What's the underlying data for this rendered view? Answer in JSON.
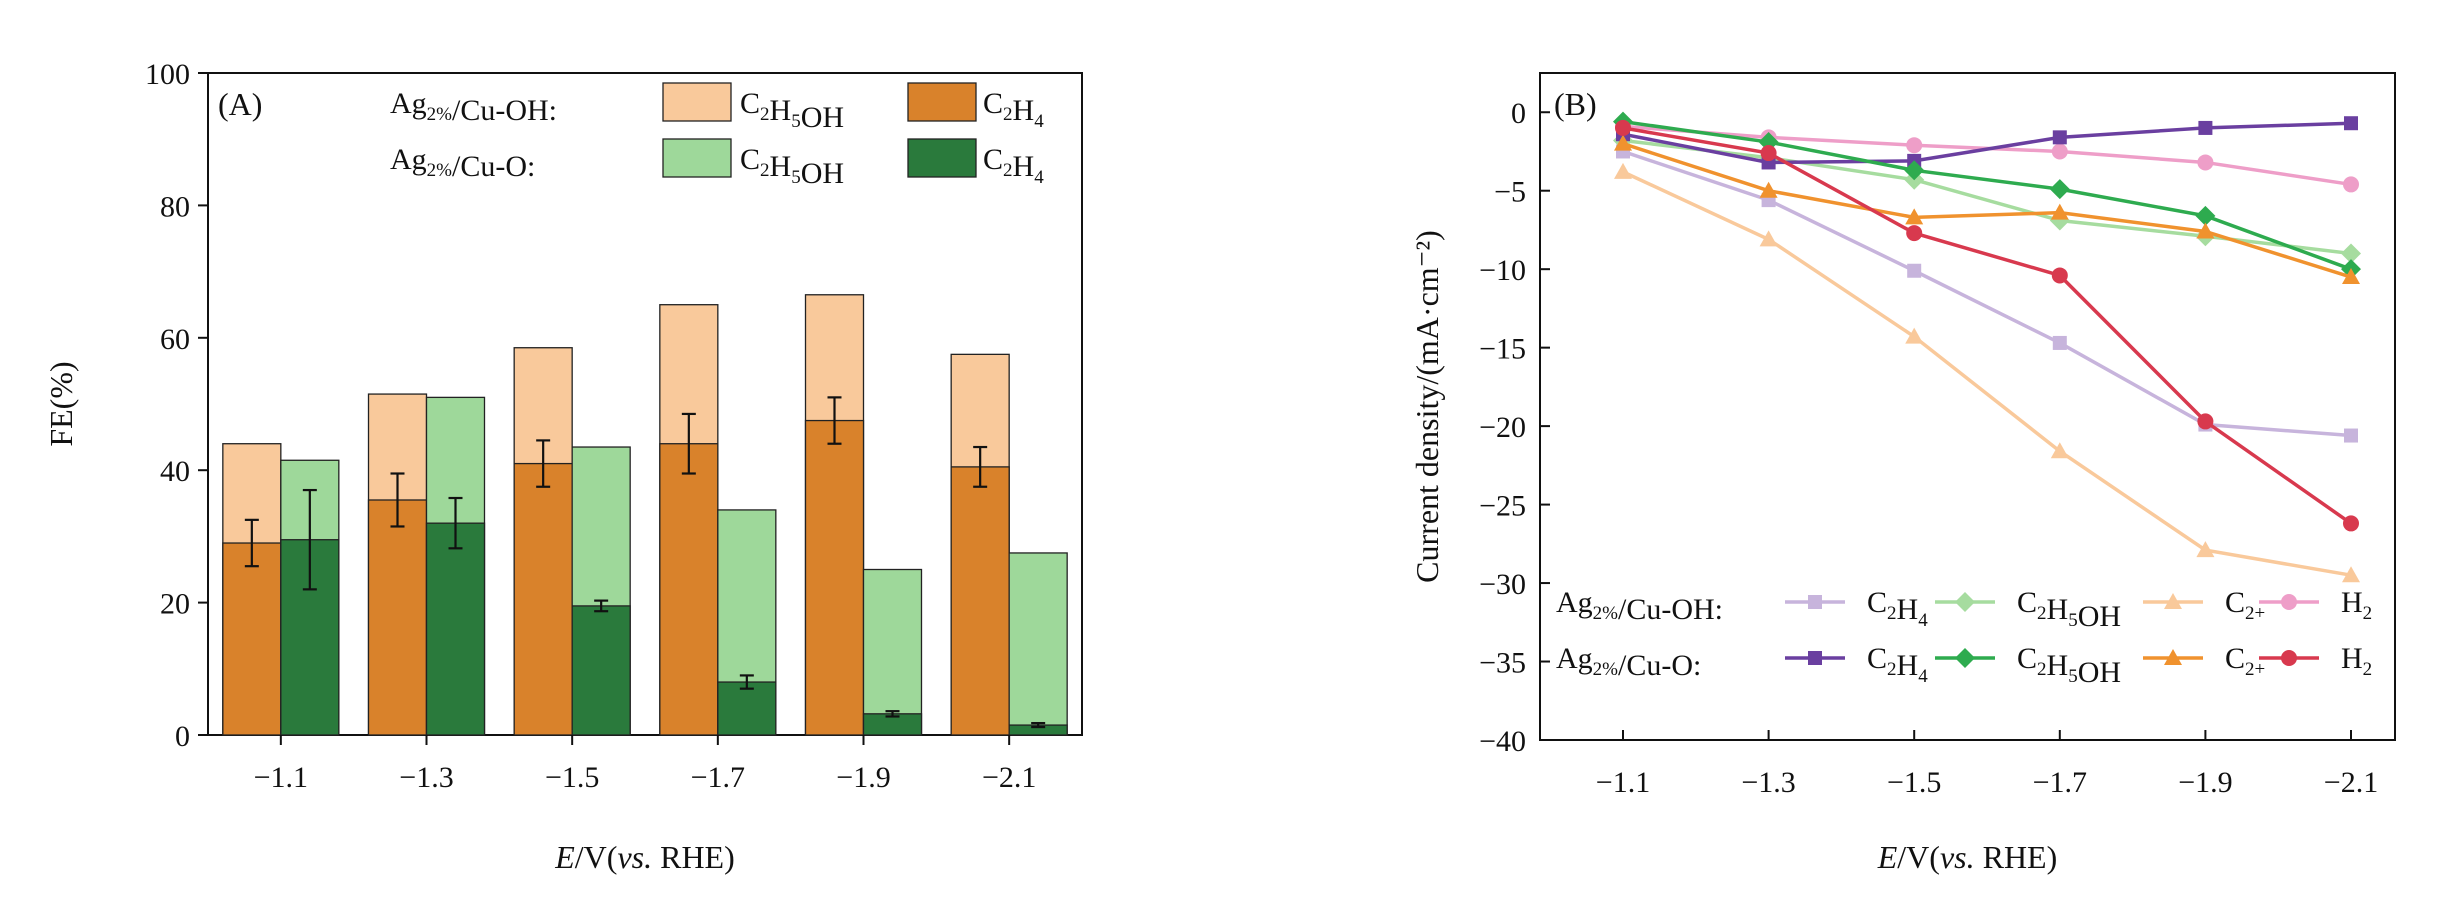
{
  "chart_data": [
    {
      "type": "bar",
      "panel_label": "(A)",
      "ylabel": "FE(%)",
      "xlabel": {
        "italic": "E",
        "mid": "/V(",
        "italic2": "vs.",
        "end": " RHE)"
      },
      "ylim": [
        0,
        100
      ],
      "yticks": [
        "0",
        "20",
        "40",
        "60",
        "80",
        "100"
      ],
      "categories": [
        "−1.1",
        "−1.3",
        "−1.5",
        "−1.7",
        "−1.9",
        "−2.1"
      ],
      "series": [
        {
          "group": "Ag2%/Cu-OH",
          "total_label": "C2H5OH",
          "total_color": "#f9c99b",
          "total_values": [
            44,
            51.5,
            58.5,
            65,
            66.5,
            57.5
          ],
          "base_label": "C2H4",
          "base_color": "#d9822b",
          "base_values": [
            29,
            35.5,
            41,
            44,
            47.5,
            40.5
          ],
          "base_errors": [
            3.5,
            4,
            3.5,
            4.5,
            3.5,
            3
          ]
        },
        {
          "group": "Ag2%/Cu-O",
          "total_label": "C2H5OH",
          "total_color": "#9ed89a",
          "total_values": [
            41.5,
            51,
            43.5,
            34,
            25,
            27.5
          ],
          "base_label": "C2H4",
          "base_color": "#2a7a3c",
          "base_values": [
            29.5,
            32,
            19.5,
            8,
            3.2,
            1.5
          ],
          "base_errors": [
            7.5,
            3.8,
            0.8,
            1,
            0.4,
            0.3
          ]
        }
      ],
      "legend": {
        "rows": [
          {
            "label": {
              "base": "Ag",
              "sub": "2%",
              "tail": "/Cu-OH:"
            }
          },
          {
            "label": {
              "base": "Ag",
              "sub": "2%",
              "tail": "/Cu-O:"
            }
          }
        ],
        "c2h5oh": {
          "a": "C",
          "s1": "2",
          "b": "H",
          "s2": "5",
          "c": "OH"
        },
        "c2h4": {
          "a": "C",
          "s1": "2",
          "b": "H",
          "s2": "4"
        }
      }
    },
    {
      "type": "line",
      "panel_label": "(B)",
      "ylabel": "Current density/(mA·cm⁻²)",
      "xlabel": {
        "italic": "E",
        "mid": "/V(",
        "italic2": "vs.",
        "end": " RHE)"
      },
      "ylim": [
        -40,
        2.5
      ],
      "yticks": [
        "0",
        "−5",
        "−10",
        "−15",
        "−20",
        "−25",
        "−30",
        "−35",
        "−40"
      ],
      "x": [
        -1.1,
        -1.3,
        -1.5,
        -1.7,
        -1.9,
        -2.1
      ],
      "xticks": [
        "−1.1",
        "−1.3",
        "−1.5",
        "−1.7",
        "−1.9",
        "−2.1"
      ],
      "series": [
        {
          "group": "Ag2%/Cu-OH",
          "product": "C2H4",
          "color": "#c7b4dc",
          "marker": "square",
          "values": [
            -2.5,
            -5.6,
            -10.1,
            -14.7,
            -19.9,
            -20.6
          ]
        },
        {
          "group": "Ag2%/Cu-OH",
          "product": "C2H5OH",
          "color": "#a6dc9f",
          "marker": "diamond",
          "values": [
            -1.8,
            -2.9,
            -4.3,
            -6.9,
            -7.9,
            -9.0
          ]
        },
        {
          "group": "Ag2%/Cu-OH",
          "product": "C2+",
          "color": "#f9c99b",
          "marker": "triangle",
          "values": [
            -3.8,
            -8.1,
            -14.3,
            -21.6,
            -27.9,
            -29.5
          ]
        },
        {
          "group": "Ag2%/Cu-OH",
          "product": "H2",
          "color": "#ee9ec8",
          "marker": "circle",
          "values": [
            -0.9,
            -1.6,
            -2.1,
            -2.5,
            -3.2,
            -4.6
          ]
        },
        {
          "group": "Ag2%/Cu-O",
          "product": "C2H4",
          "color": "#6a3fa0",
          "marker": "square",
          "values": [
            -1.4,
            -3.2,
            -3.1,
            -1.6,
            -1.0,
            -0.7
          ]
        },
        {
          "group": "Ag2%/Cu-O",
          "product": "C2H5OH",
          "color": "#2eab4f",
          "marker": "diamond",
          "values": [
            -0.6,
            -1.9,
            -3.7,
            -4.9,
            -6.6,
            -10.0
          ]
        },
        {
          "group": "Ag2%/Cu-O",
          "product": "C2+",
          "color": "#f0922e",
          "marker": "triangle",
          "values": [
            -2.0,
            -5.0,
            -6.7,
            -6.4,
            -7.6,
            -10.5
          ]
        },
        {
          "group": "Ag2%/Cu-O",
          "product": "H2",
          "color": "#d8394e",
          "marker": "circle",
          "values": [
            -1.0,
            -2.6,
            -7.7,
            -10.4,
            -19.7,
            -26.2
          ]
        }
      ],
      "legend": {
        "rows": [
          {
            "label": {
              "base": "Ag",
              "sub": "2%",
              "tail": "/Cu-OH:"
            }
          },
          {
            "label": {
              "base": "Ag",
              "sub": "2%",
              "tail": "/Cu-O:"
            }
          }
        ],
        "c2h4": {
          "a": "C",
          "s1": "2",
          "b": "H",
          "s2": "4"
        },
        "c2h5oh": {
          "a": "C",
          "s1": "2",
          "b": "H",
          "s2": "5",
          "c": "OH"
        },
        "c2plus": {
          "a": "C",
          "s1": "2+"
        },
        "h2": {
          "a": "H",
          "s1": "2"
        }
      }
    }
  ]
}
